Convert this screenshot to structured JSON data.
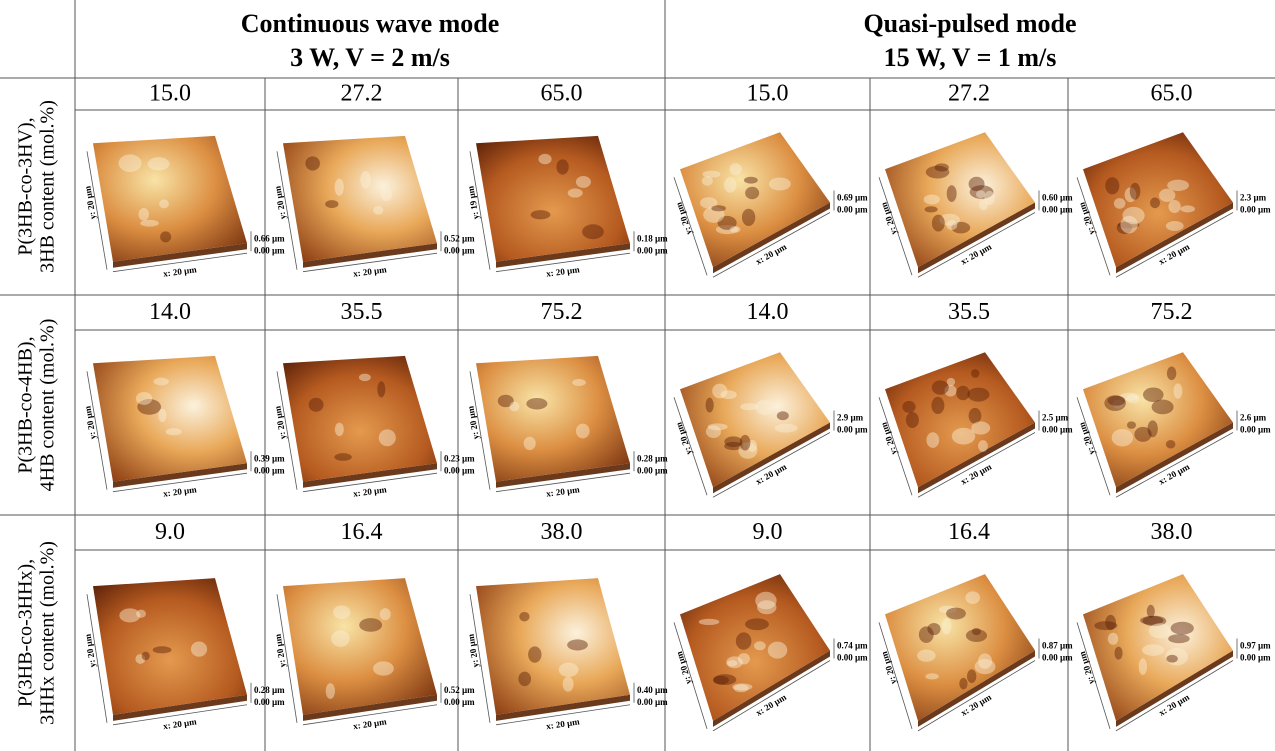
{
  "header": {
    "columns": [
      {
        "title": "Continuous wave mode",
        "subtitle": "3 W, V = 2 m/s"
      },
      {
        "title": "Quasi-pulsed mode",
        "subtitle": "15 W, V = 1 m/s"
      }
    ]
  },
  "rows": [
    {
      "label": [
        "P(3HB-co-3HV),",
        "3HB content (mol.%)"
      ],
      "contents": [
        "15.0",
        "27.2",
        "65.0",
        "15.0",
        "27.2",
        "65.0"
      ],
      "images": [
        {
          "y": "y: 20 µm",
          "x": "x: 20 µm",
          "z": "0.66 µm",
          "zero": "0.00 µm"
        },
        {
          "y": "y: 20 µm",
          "x": "x: 20 µm",
          "z": "0.52 µm",
          "zero": "0.00 µm"
        },
        {
          "y": "y: 19 µm",
          "x": "x: 20 µm",
          "z": "0.18 µm",
          "zero": "0.00 µm"
        },
        {
          "y": "y: 20 µm",
          "x": "x: 20 µm",
          "z": "0.69 µm",
          "zero": "0.00 µm"
        },
        {
          "y": "y: 20 µm",
          "x": "x: 20 µm",
          "z": "0.60 µm",
          "zero": "0.00 µm"
        },
        {
          "y": "y: 20 µm",
          "x": "x: 20 µm",
          "z": "2.3 µm",
          "zero": "0.00 µm"
        }
      ]
    },
    {
      "label": [
        "P(3HB-co-4HB),",
        "4HB content (mol.%)"
      ],
      "contents": [
        "14.0",
        "35.5",
        "75.2",
        "14.0",
        "35.5",
        "75.2"
      ],
      "images": [
        {
          "y": "y: 20 µm",
          "x": "x: 20 µm",
          "z": "0.39 µm",
          "zero": "0.00 µm"
        },
        {
          "y": "y: 20 µm",
          "x": "x: 20 µm",
          "z": "0.23 µm",
          "zero": "0.00 µm"
        },
        {
          "y": "y: 20 µm",
          "x": "x: 20 µm",
          "z": "0.28 µm",
          "zero": "0.00 µm"
        },
        {
          "y": "y: 20 µm",
          "x": "x: 20 µm",
          "z": "2.9 µm",
          "zero": "0.00 µm"
        },
        {
          "y": "y: 20 µm",
          "x": "x: 20 µm",
          "z": "2.5 µm",
          "zero": "0.00 µm"
        },
        {
          "y": "y: 20 µm",
          "x": "x: 20 µm",
          "z": "2.6 µm",
          "zero": "0.00 µm"
        }
      ]
    },
    {
      "label": [
        "P(3HB-co-3HHx),",
        "3HHx content (mol.%)"
      ],
      "contents": [
        "9.0",
        "16.4",
        "38.0",
        "9.0",
        "16.4",
        "38.0"
      ],
      "images": [
        {
          "y": "y: 20 µm",
          "x": "x: 20 µm",
          "z": "0.28 µm",
          "zero": "0.00 µm"
        },
        {
          "y": "y: 20 µm",
          "x": "x: 20 µm",
          "z": "0.52 µm",
          "zero": "0.00 µm"
        },
        {
          "y": "y: 20 µm",
          "x": "x: 20 µm",
          "z": "0.40 µm",
          "zero": "0.00 µm"
        },
        {
          "y": "y: 20 µm",
          "x": "x: 20 µm",
          "z": "0.74 µm",
          "zero": "0.00 µm"
        },
        {
          "y": "y: 20 µm",
          "x": "x: 20 µm",
          "z": "0.87 µm",
          "zero": "0.00 µm"
        },
        {
          "y": "y: 20 µm",
          "x": "x: 20 µm",
          "z": "0.97 µm",
          "zero": "0.00 µm"
        }
      ]
    }
  ]
}
